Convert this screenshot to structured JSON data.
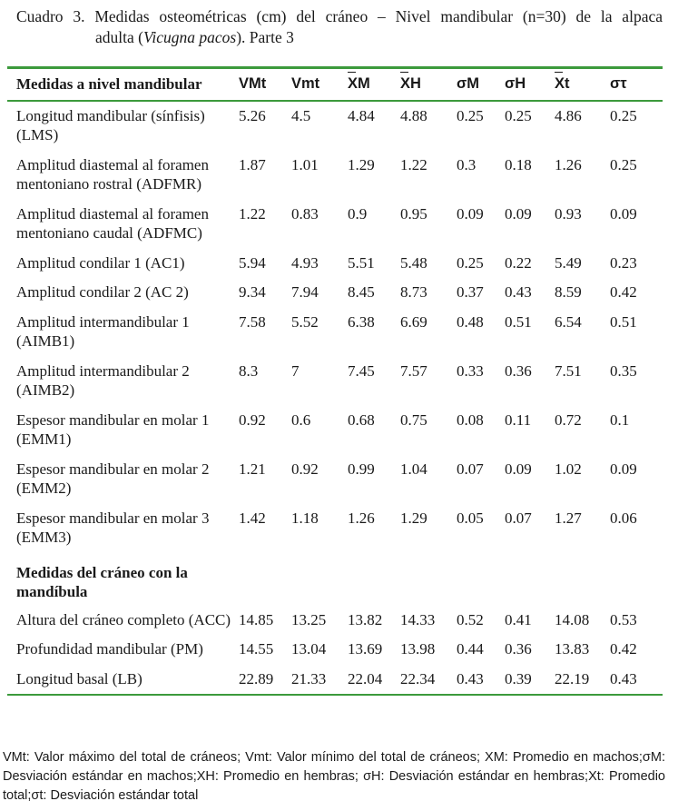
{
  "caption": {
    "line1": "Cuadro 3.  Medidas osteométricas (cm) del cráneo – Nivel mandibular (n=30) de la alpaca",
    "line2_prefix": "adulta (",
    "species": "Vicugna pacos",
    "line2_suffix": "). Parte 3"
  },
  "table": {
    "headers": [
      "Medidas a nivel mandibular",
      "VMt",
      "Vmt",
      "XM",
      "XH",
      "σM",
      "σH",
      "Xt",
      "στ"
    ],
    "rows_group1": [
      {
        "label": "Longitud mandibular (sínfisis) (LMS)",
        "values": [
          "5.26",
          "4.5",
          "4.84",
          "4.88",
          "0.25",
          "0.25",
          "4.86",
          "0.25"
        ]
      },
      {
        "label": "Amplitud diastemal al foramen mentoniano rostral (ADFMR)",
        "values": [
          "1.87",
          "1.01",
          "1.29",
          "1.22",
          "0.3",
          "0.18",
          "1.26",
          "0.25"
        ]
      },
      {
        "label": "Amplitud diastemal al foramen mentoniano caudal (ADFMC)",
        "values": [
          "1.22",
          "0.83",
          "0.9",
          "0.95",
          "0.09",
          "0.09",
          "0.93",
          "0.09"
        ]
      },
      {
        "label": "Amplitud condilar 1 (AC1)",
        "values": [
          "5.94",
          "4.93",
          "5.51",
          "5.48",
          "0.25",
          "0.22",
          "5.49",
          "0.23"
        ]
      },
      {
        "label": "Amplitud condilar 2 (AC 2)",
        "values": [
          "9.34",
          "7.94",
          "8.45",
          "8.73",
          "0.37",
          "0.43",
          "8.59",
          "0.42"
        ]
      },
      {
        "label": "Amplitud intermandibular 1 (AIMB1)",
        "values": [
          "7.58",
          "5.52",
          "6.38",
          "6.69",
          "0.48",
          "0.51",
          "6.54",
          "0.51"
        ]
      },
      {
        "label": "Amplitud intermandibular 2 (AIMB2)",
        "values": [
          "8.3",
          "7",
          "7.45",
          "7.57",
          "0.33",
          "0.36",
          "7.51",
          "0.35"
        ]
      },
      {
        "label": "Espesor mandibular en molar 1 (EMM1)",
        "values": [
          "0.92",
          "0.6",
          "0.68",
          "0.75",
          "0.08",
          "0.11",
          "0.72",
          "0.1"
        ]
      },
      {
        "label": "Espesor mandibular en molar 2 (EMM2)",
        "values": [
          "1.21",
          "0.92",
          "0.99",
          "1.04",
          "0.07",
          "0.09",
          "1.02",
          "0.09"
        ]
      },
      {
        "label": "Espesor mandibular en molar 3 (EMM3)",
        "values": [
          "1.42",
          "1.18",
          "1.26",
          "1.29",
          "0.05",
          "0.07",
          "1.27",
          "0.06"
        ]
      }
    ],
    "section2_title": "Medidas del cráneo con la mandíbula",
    "rows_group2": [
      {
        "label": "Altura del cráneo completo (ACC)",
        "values": [
          "14.85",
          "13.25",
          "13.82",
          "14.33",
          "0.52",
          "0.41",
          "14.08",
          "0.53"
        ]
      },
      {
        "label": "Profundidad mandibular (PM)",
        "values": [
          "14.55",
          "13.04",
          "13.69",
          "13.98",
          "0.44",
          "0.36",
          "13.83",
          "0.42"
        ]
      },
      {
        "label": "Longitud basal (LB)",
        "values": [
          "22.89",
          "21.33",
          "22.04",
          "22.34",
          "0.43",
          "0.39",
          "22.19",
          "0.43"
        ]
      }
    ]
  },
  "footnote": "VMt: Valor máximo del total de cráneos; Vmt: Valor mínimo del total de cráneos; XM: Promedio en machos;σM: Desviación estándar en machos;XH: Promedio en hembras; σH: Desviación estándar en hembras;Xt: Promedio total;σt: Desviación estándar total"
}
